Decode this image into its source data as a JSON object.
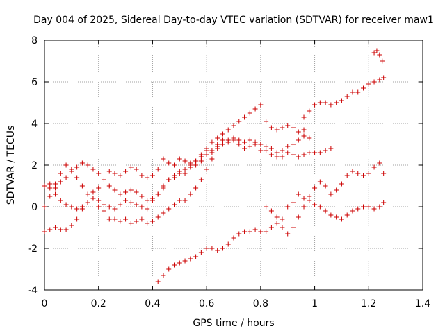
{
  "chart_data": {
    "type": "scatter",
    "title": "Day 004 of 2025, Sidereal Day-to-day VTEC variation (SDTVAR) for receiver maw1",
    "xlabel": "GPS time / hours",
    "ylabel": "SDTVAR / TECUs",
    "xlim": [
      0,
      1.4
    ],
    "ylim": [
      -4,
      8
    ],
    "x_ticks": [
      0,
      0.2,
      0.4,
      0.6,
      0.8,
      1,
      1.2,
      1.4
    ],
    "x_tick_labels": [
      "0",
      "0.2",
      "0.4",
      "0.6",
      "0.8",
      "1",
      "1.2",
      "1.4"
    ],
    "y_ticks": [
      -4,
      -2,
      0,
      2,
      4,
      6,
      8
    ],
    "y_tick_labels": [
      "-4",
      "-2",
      "0",
      "2",
      "4",
      "6",
      "8"
    ],
    "grid": true,
    "marker": "+",
    "marker_color": "#cc0000",
    "series": [
      {
        "name": "s1",
        "x": [
          0.0,
          0.02,
          0.04,
          0.06,
          0.08,
          0.1,
          0.12,
          0.14,
          0.16,
          0.18,
          0.2,
          0.22,
          0.24,
          0.26,
          0.28,
          0.3,
          0.32,
          0.34,
          0.36,
          0.38,
          0.4,
          0.42,
          0.44,
          0.46,
          0.48,
          0.5,
          0.52,
          0.54,
          0.56,
          0.58,
          0.6,
          0.62,
          0.64,
          0.66,
          0.68,
          0.7,
          0.72,
          0.74,
          0.76,
          0.78,
          0.8,
          0.82,
          0.84,
          0.86,
          0.88,
          0.9,
          0.92,
          0.94,
          0.96,
          0.98,
          1.0,
          1.02,
          1.04,
          1.06,
          1.08,
          1.1,
          1.12,
          1.14,
          1.16,
          1.18,
          1.2,
          1.22,
          1.24,
          1.255
        ],
        "y": [
          -1.2,
          -1.1,
          -1.0,
          -1.1,
          -1.1,
          -0.9,
          -0.6,
          -0.1,
          0.2,
          0.4,
          0.0,
          -0.2,
          -0.6,
          -0.6,
          -0.7,
          -0.6,
          -0.8,
          -0.7,
          -0.6,
          -0.8,
          -0.7,
          -0.5,
          -0.3,
          -0.1,
          0.1,
          0.3,
          0.3,
          0.6,
          0.9,
          1.3,
          1.8,
          2.3,
          2.9,
          3.0,
          3.2,
          3.2,
          3.2,
          3.1,
          3.2,
          3.1,
          3.0,
          2.7,
          2.5,
          2.4,
          2.4,
          2.6,
          2.5,
          2.4,
          2.5,
          2.6,
          2.6,
          2.6,
          2.7,
          2.8,
          null,
          null,
          null,
          null,
          null,
          null,
          null,
          null,
          null,
          null
        ]
      },
      {
        "name": "s2",
        "x": [
          0.0,
          0.02,
          0.04,
          0.06,
          0.08,
          0.1,
          0.12,
          0.14,
          0.16,
          0.18,
          0.2,
          0.22,
          0.24,
          0.26,
          0.28,
          0.3,
          0.32,
          0.34,
          0.36,
          0.38,
          0.4,
          0.42,
          0.44,
          0.46,
          0.48,
          0.5,
          0.52,
          0.54,
          0.56,
          0.58,
          0.6,
          0.62,
          0.64,
          0.66,
          0.68,
          0.7,
          0.72,
          0.74,
          0.76,
          0.78,
          0.8,
          0.82,
          0.84,
          0.86,
          0.88,
          0.9,
          0.92,
          0.94,
          0.96
        ],
        "y": [
          0.0,
          0.5,
          1.1,
          1.6,
          2.0,
          1.8,
          1.4,
          1.0,
          0.6,
          0.7,
          0.9,
          1.3,
          1.7,
          1.6,
          1.5,
          1.7,
          1.9,
          1.8,
          1.5,
          1.4,
          1.5,
          1.8,
          2.3,
          2.1,
          2.0,
          2.3,
          2.2,
          2.1,
          2.2,
          2.5,
          2.8,
          3.1,
          3.3,
          3.5,
          3.7,
          3.9,
          4.1,
          4.3,
          4.5,
          4.7,
          4.9,
          4.1,
          3.8,
          3.7,
          3.8,
          3.9,
          3.8,
          3.6,
          3.7
        ]
      },
      {
        "name": "s3",
        "x": [
          0.0,
          0.02,
          0.04,
          0.06,
          0.08,
          0.1,
          0.12,
          0.14,
          0.16,
          0.18,
          0.2,
          0.22,
          0.24,
          0.26,
          0.28,
          0.3,
          0.32,
          0.34,
          0.36,
          0.38,
          0.4,
          0.42,
          0.44,
          0.46,
          0.48,
          0.5,
          0.52,
          0.54,
          0.56,
          0.58,
          0.6,
          0.62,
          0.64,
          0.66,
          0.68,
          0.7,
          0.72,
          0.74,
          0.76,
          0.78,
          0.8,
          0.82,
          0.84,
          0.86,
          0.88,
          0.9,
          0.92,
          0.94,
          0.96,
          0.98
        ],
        "y": [
          1.0,
          1.1,
          0.9,
          1.2,
          1.4,
          1.7,
          1.9,
          2.1,
          2.0,
          1.8,
          1.6,
          1.3,
          1.0,
          0.8,
          0.6,
          0.7,
          0.8,
          0.7,
          0.5,
          0.3,
          0.4,
          0.6,
          0.9,
          1.3,
          1.5,
          1.7,
          1.6,
          1.9,
          2.0,
          2.2,
          2.5,
          2.7,
          3.0,
          3.2,
          3.1,
          3.3,
          3.0,
          2.8,
          2.9,
          3.0,
          2.7,
          2.9,
          2.8,
          2.6,
          2.7,
          2.9,
          3.0,
          3.2,
          3.4,
          3.3
        ]
      },
      {
        "name": "s4",
        "x": [
          0.02,
          0.04,
          0.06,
          0.08,
          0.1,
          0.12,
          0.14,
          0.16,
          0.18,
          0.2,
          0.22,
          0.24,
          0.26,
          0.28,
          0.3,
          0.32,
          0.34,
          0.36,
          0.38,
          0.4,
          0.42,
          0.44,
          0.46,
          0.48,
          0.5,
          0.52,
          0.54,
          0.56,
          0.58,
          0.6,
          0.62,
          0.64
        ],
        "y": [
          0.9,
          0.6,
          0.3,
          0.1,
          0.0,
          -0.1,
          0.0,
          0.2,
          0.4,
          0.3,
          0.1,
          0.0,
          -0.1,
          0.1,
          0.3,
          0.2,
          0.1,
          0.0,
          -0.1,
          0.3,
          0.6,
          1.0,
          1.3,
          1.4,
          1.6,
          1.8,
          2.0,
          2.2,
          2.4,
          2.7,
          2.6,
          2.8
        ]
      },
      {
        "name": "s5",
        "x": [
          0.42,
          0.44,
          0.46,
          0.48,
          0.5,
          0.52,
          0.54,
          0.56,
          0.58,
          0.6,
          0.62,
          0.64,
          0.66,
          0.68,
          0.7,
          0.72,
          0.74,
          0.76,
          0.78,
          0.8,
          0.82,
          0.84,
          0.86,
          0.88,
          0.9,
          0.92,
          0.94,
          0.96,
          0.98,
          1.0,
          1.02,
          1.04,
          1.06,
          1.08,
          1.1,
          1.12,
          1.14,
          1.16,
          1.18,
          1.2,
          1.22,
          1.24,
          1.255
        ],
        "y": [
          -3.6,
          -3.3,
          -3.0,
          -2.8,
          -2.7,
          -2.6,
          -2.5,
          -2.4,
          -2.2,
          -2.0,
          -2.0,
          -2.1,
          -2.0,
          -1.8,
          -1.5,
          -1.3,
          -1.2,
          -1.2,
          -1.1,
          -1.2,
          -1.2,
          -1.0,
          -0.8,
          -0.6,
          0.0,
          0.2,
          0.6,
          0.4,
          0.3,
          0.1,
          0.0,
          -0.2,
          -0.4,
          -0.5,
          -0.6,
          -0.4,
          -0.2,
          -0.1,
          0.0,
          0.0,
          -0.1,
          0.0,
          0.2
        ]
      },
      {
        "name": "s6",
        "x": [
          0.82,
          0.84,
          0.86,
          0.88,
          0.9,
          0.92,
          0.94,
          0.96,
          0.98,
          1.0,
          1.02,
          1.04,
          1.06,
          1.08,
          1.1,
          1.12,
          1.14,
          1.16,
          1.18,
          1.2,
          1.22,
          1.24,
          1.255
        ],
        "y": [
          0.0,
          -0.2,
          -0.5,
          -1.0,
          -1.3,
          -1.0,
          -0.5,
          0.0,
          0.5,
          0.9,
          1.2,
          1.0,
          0.6,
          0.8,
          1.1,
          1.5,
          1.7,
          1.6,
          1.5,
          1.6,
          1.9,
          2.1,
          1.6
        ]
      },
      {
        "name": "s7",
        "x": [
          0.96,
          0.98,
          1.0,
          1.02,
          1.04,
          1.06,
          1.08,
          1.1,
          1.12,
          1.14,
          1.16,
          1.18,
          1.2,
          1.22,
          1.24,
          1.255
        ],
        "y": [
          4.3,
          4.6,
          4.9,
          5.0,
          5.0,
          4.9,
          5.0,
          5.1,
          5.3,
          5.5,
          5.5,
          5.7,
          5.9,
          6.0,
          6.1,
          6.2
        ]
      },
      {
        "name": "s8",
        "x": [
          1.22,
          1.23,
          1.24,
          1.25
        ],
        "y": [
          7.4,
          7.5,
          7.3,
          7.0
        ]
      }
    ]
  }
}
